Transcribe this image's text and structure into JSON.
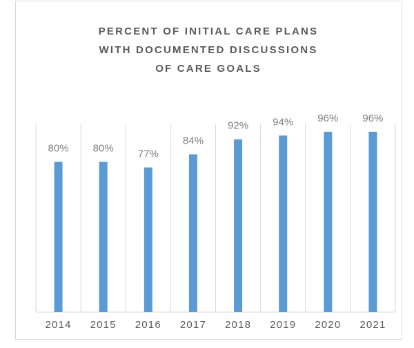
{
  "chart_data": {
    "type": "bar",
    "title": [
      "PERCENT OF INITIAL CARE PLANS",
      "WITH DOCUMENTED DISCUSSIONS",
      "OF CARE GOALS"
    ],
    "categories": [
      "2014",
      "2015",
      "2016",
      "2017",
      "2018",
      "2019",
      "2020",
      "2021"
    ],
    "values": [
      80,
      80,
      77,
      84,
      92,
      94,
      96,
      96
    ],
    "value_labels": [
      "80%",
      "80%",
      "77%",
      "84%",
      "92%",
      "94%",
      "96%",
      "96%"
    ],
    "color": "#5b9bd5",
    "ylim": [
      0,
      100
    ],
    "grid": true
  }
}
